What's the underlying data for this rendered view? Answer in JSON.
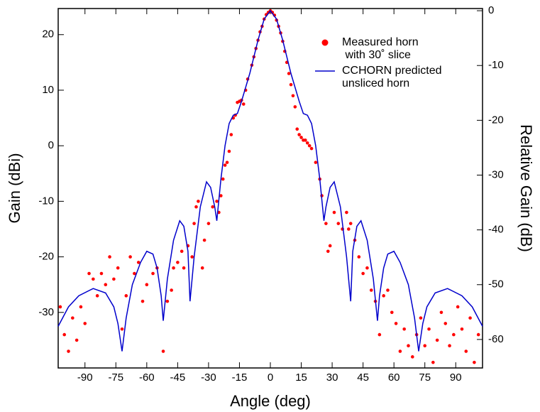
{
  "chart_data": {
    "type": "line",
    "xlabel": "Angle (deg)",
    "ylabel": "Gain (dBi)",
    "y2label": "Relative Gain (dB)",
    "xlim": [
      -103,
      103
    ],
    "ylim": [
      -40,
      24.7
    ],
    "y2lim": [
      -65.2,
      0.4
    ],
    "xticks": [
      -90,
      -75,
      -60,
      -45,
      -30,
      -15,
      0,
      15,
      30,
      45,
      60,
      75,
      90
    ],
    "yticks": [
      -30,
      -20,
      -10,
      0,
      10,
      20
    ],
    "y2ticks": [
      -60,
      -50,
      -40,
      -30,
      -20,
      -10,
      0
    ],
    "legend": "upper right",
    "series": [
      {
        "name": "Measured horn\n with 30˚ slice",
        "type": "scatter",
        "color": "#ff0000",
        "x": [
          -102,
          -100,
          -98,
          -96,
          -94,
          -92,
          -90,
          -88,
          -86,
          -84,
          -82,
          -80,
          -78,
          -76,
          -74,
          -72,
          -70,
          -68,
          -66,
          -64,
          -62,
          -60,
          -57,
          -55,
          -52,
          -50,
          -48,
          -47,
          -45,
          -43,
          -42,
          -40,
          -38,
          -37,
          -36,
          -35,
          -33,
          -32,
          -30,
          -28,
          -26,
          -25,
          -24,
          -23,
          -22,
          -21,
          -20,
          -19,
          -18,
          -17,
          -16,
          -15,
          -14,
          -13,
          -12,
          -11,
          -9,
          -8,
          -7,
          -6,
          -5,
          -4,
          -3,
          -2,
          -1,
          0,
          1,
          2,
          3,
          4,
          5,
          6,
          7,
          8,
          9,
          10,
          11,
          12,
          13,
          14,
          15,
          16,
          17,
          18,
          19,
          20,
          22,
          24,
          25,
          27,
          28,
          29,
          31,
          33,
          35,
          37,
          38,
          39,
          41,
          43,
          45,
          47,
          49,
          51,
          53,
          55,
          57,
          59,
          61,
          63,
          65,
          67,
          69,
          71,
          73,
          75,
          77,
          79,
          81,
          83,
          85,
          87,
          89,
          91,
          93,
          95,
          97,
          99,
          101
        ],
        "values": [
          -29,
          -34,
          -37,
          -31,
          -35,
          -29,
          -32,
          -23,
          -24,
          -27,
          -23,
          -25,
          -20,
          -24,
          -22,
          -33,
          -27,
          -20,
          -23,
          -21,
          -28,
          -25,
          -23,
          -22,
          -37,
          -28,
          -26,
          -22,
          -21,
          -19,
          -22,
          -18,
          -20,
          -14,
          -11,
          -10,
          -22,
          -17,
          -14,
          -11,
          -10,
          -12,
          -9,
          -6,
          -3.5,
          -3,
          -1,
          2,
          5,
          5.5,
          7.8,
          8,
          8.2,
          7.5,
          10,
          12,
          14.5,
          16,
          17.5,
          19,
          20.5,
          21.5,
          22.8,
          23.6,
          24,
          24.3,
          24,
          23.5,
          22.6,
          21.5,
          20.3,
          18.8,
          17,
          15,
          13,
          11,
          9,
          7,
          3,
          2,
          1.5,
          1,
          1,
          0.5,
          0,
          -0.5,
          -3,
          -6,
          -9,
          -14,
          -19,
          -18,
          -12,
          -14,
          -15,
          -12,
          -15,
          -14,
          -17,
          -20,
          -23,
          -22,
          -26,
          -28,
          -34,
          -27,
          -26,
          -30,
          -32,
          -37,
          -33,
          -36,
          -38,
          -34,
          -31,
          -36,
          -33,
          -39,
          -35,
          -30,
          -32,
          -36,
          -34,
          -29,
          -33,
          -37,
          -31,
          -39,
          -34
        ]
      },
      {
        "name": "CCHORN predicted\nunsliced horn",
        "type": "line",
        "color": "#0000cc",
        "x": [
          -103,
          -98,
          -93,
          -86,
          -80,
          -76,
          -74,
          -72,
          -70,
          -67,
          -63,
          -60,
          -57,
          -55,
          -53,
          -52,
          -50,
          -47,
          -44,
          -42,
          -40,
          -39,
          -37,
          -34,
          -31,
          -29,
          -27,
          -26,
          -24,
          -22,
          -20,
          -18,
          -16,
          -14,
          -10,
          -6,
          -3,
          0,
          3,
          6,
          10,
          14,
          16,
          18,
          20,
          22,
          24,
          26,
          27,
          29,
          31,
          34,
          37,
          39,
          40,
          42,
          44,
          47,
          50,
          52,
          53,
          55,
          57,
          60,
          63,
          67,
          70,
          72,
          74,
          76,
          80,
          86,
          93,
          98,
          103
        ],
        "values": [
          -32.5,
          -29,
          -27,
          -25.7,
          -26.5,
          -29,
          -32,
          -37,
          -31,
          -25,
          -21,
          -19,
          -19.5,
          -22,
          -27,
          -31.5,
          -24,
          -17,
          -13.5,
          -14.5,
          -19,
          -28,
          -20,
          -11,
          -6.5,
          -7.5,
          -11,
          -13.5,
          -6,
          0,
          4,
          5.5,
          5.8,
          8,
          13,
          19,
          22.8,
          24.3,
          22.8,
          19,
          13,
          8,
          5.8,
          5.5,
          4,
          0,
          -6,
          -13.5,
          -11,
          -7.5,
          -6.5,
          -11,
          -20,
          -28,
          -19,
          -14.5,
          -13.5,
          -17,
          -24,
          -31.5,
          -27,
          -22,
          -19.5,
          -19,
          -21,
          -25,
          -31,
          -37,
          -32,
          -29,
          -26.5,
          -25.7,
          -27,
          -29,
          -32.5
        ]
      }
    ]
  }
}
